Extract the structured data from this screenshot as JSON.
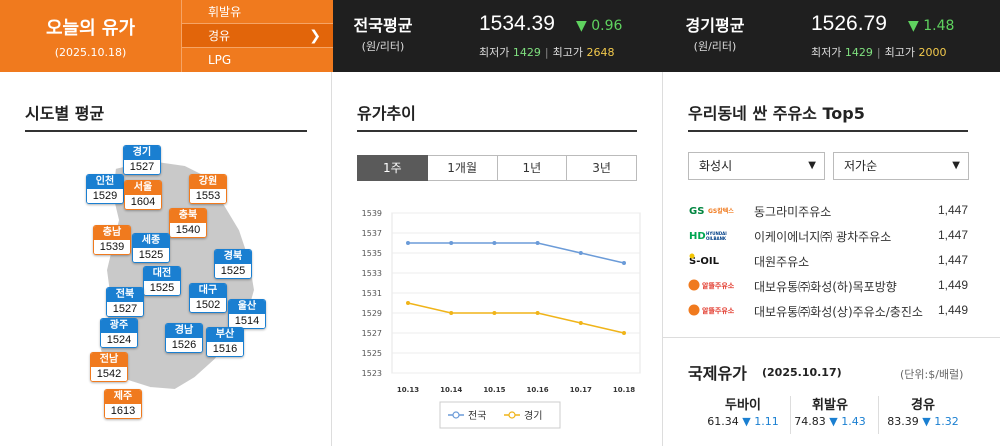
{
  "header": {
    "title": "오늘의 유가",
    "date": "(2025.10.18)",
    "fuel_tabs": [
      {
        "label": "휘발유",
        "active": false
      },
      {
        "label": "경유",
        "active": true
      },
      {
        "label": "LPG",
        "active": false
      }
    ],
    "national": {
      "name": "전국평균",
      "unit": "(원/리터)",
      "price": "1534.39",
      "change": "▼ 0.96",
      "min_label": "최저가",
      "min": "1429",
      "max_label": "최고가",
      "max": "2648"
    },
    "gyeonggi": {
      "name": "경기평균",
      "unit": "(원/리터)",
      "price": "1526.79",
      "change": "▼ 1.48",
      "min_label": "최저가",
      "min": "1429",
      "max_label": "최고가",
      "max": "2000"
    }
  },
  "regional": {
    "title": "시도별 평균",
    "markers": [
      {
        "name": "경기",
        "value": "1527",
        "color": "blue"
      },
      {
        "name": "인천",
        "value": "1529",
        "color": "blue"
      },
      {
        "name": "서울",
        "value": "1604",
        "color": "orange"
      },
      {
        "name": "강원",
        "value": "1553",
        "color": "orange"
      },
      {
        "name": "충북",
        "value": "1540",
        "color": "orange"
      },
      {
        "name": "충남",
        "value": "1539",
        "color": "orange"
      },
      {
        "name": "세종",
        "value": "1525",
        "color": "blue"
      },
      {
        "name": "경북",
        "value": "1525",
        "color": "blue"
      },
      {
        "name": "대전",
        "value": "1525",
        "color": "blue"
      },
      {
        "name": "전북",
        "value": "1527",
        "color": "blue"
      },
      {
        "name": "대구",
        "value": "1502",
        "color": "blue"
      },
      {
        "name": "울산",
        "value": "1514",
        "color": "blue"
      },
      {
        "name": "광주",
        "value": "1524",
        "color": "blue"
      },
      {
        "name": "경남",
        "value": "1526",
        "color": "blue"
      },
      {
        "name": "부산",
        "value": "1516",
        "color": "blue"
      },
      {
        "name": "전남",
        "value": "1542",
        "color": "orange"
      },
      {
        "name": "제주",
        "value": "1613",
        "color": "orange"
      }
    ]
  },
  "trend": {
    "title": "유가추이",
    "periods": [
      {
        "label": "1주",
        "active": true
      },
      {
        "label": "1개월",
        "active": false
      },
      {
        "label": "1년",
        "active": false
      },
      {
        "label": "3년",
        "active": false
      }
    ]
  },
  "chart_data": {
    "type": "line",
    "x": [
      "10.13",
      "10.14",
      "10.15",
      "10.16",
      "10.17",
      "10.18"
    ],
    "series": [
      {
        "name": "전국",
        "values": [
          1536,
          1536,
          1536,
          1536,
          1535,
          1534
        ],
        "color": "#6b9bd8"
      },
      {
        "name": "경기",
        "values": [
          1530,
          1529,
          1529,
          1529,
          1528,
          1527
        ],
        "color": "#f0b419"
      }
    ],
    "yticks": [
      "1539",
      "1537",
      "1535",
      "1533",
      "1531",
      "1529",
      "1527",
      "1525",
      "1523"
    ],
    "ylim": [
      1523,
      1539
    ],
    "grid": true,
    "legend": "bottom"
  },
  "top5": {
    "title": "우리동네 싼 주유소 Top5",
    "region": "화성시",
    "sort": "저가순",
    "stations": [
      {
        "brand": "GS칼텍스",
        "logo": "gs-caltex-logo",
        "name": "동그라미주유소",
        "price": "1,447"
      },
      {
        "brand": "HD현대오일뱅크",
        "logo": "hd-hyundai-oilbank-logo",
        "name": "이케이에너지㈜ 광차주유소",
        "price": "1,447"
      },
      {
        "brand": "S-OIL",
        "logo": "s-oil-logo",
        "name": "대원주유소",
        "price": "1,447"
      },
      {
        "brand": "알뜰주유소",
        "logo": "altteul-logo",
        "name": "대보유통㈜화성(하)목포방향",
        "price": "1,449"
      },
      {
        "brand": "알뜰주유소",
        "logo": "altteul-logo",
        "name": "대보유통㈜화성(상)주유소/충진소",
        "price": "1,449"
      }
    ]
  },
  "intl": {
    "title": "국제유가",
    "date": "(2025.10.17)",
    "unit": "(단위:$/배럴)",
    "crudes": [
      {
        "name": "두바이",
        "price": "61.34",
        "change": "▼ 1.11"
      },
      {
        "name": "휘발유",
        "price": "74.83",
        "change": "▼ 1.43"
      },
      {
        "name": "경유",
        "price": "83.39",
        "change": "▼ 1.32"
      }
    ]
  },
  "colors": {
    "orange": "#f07a1e",
    "blue": "#1a7fd1",
    "green": "#5fd35f",
    "dark": "#1f1f1f"
  }
}
